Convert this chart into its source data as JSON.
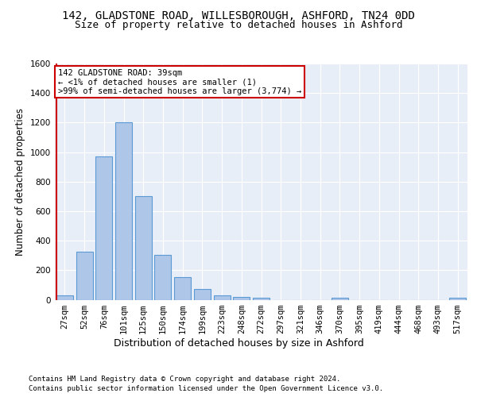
{
  "title_line1": "142, GLADSTONE ROAD, WILLESBOROUGH, ASHFORD, TN24 0DD",
  "title_line2": "Size of property relative to detached houses in Ashford",
  "xlabel": "Distribution of detached houses by size in Ashford",
  "ylabel": "Number of detached properties",
  "footnote1": "Contains HM Land Registry data © Crown copyright and database right 2024.",
  "footnote2": "Contains public sector information licensed under the Open Government Licence v3.0.",
  "bar_labels": [
    "27sqm",
    "52sqm",
    "76sqm",
    "101sqm",
    "125sqm",
    "150sqm",
    "174sqm",
    "199sqm",
    "223sqm",
    "248sqm",
    "272sqm",
    "297sqm",
    "321sqm",
    "346sqm",
    "370sqm",
    "395sqm",
    "419sqm",
    "444sqm",
    "468sqm",
    "493sqm",
    "517sqm"
  ],
  "bar_values": [
    28,
    325,
    970,
    1200,
    700,
    305,
    155,
    70,
    30,
    20,
    15,
    0,
    0,
    0,
    12,
    0,
    0,
    0,
    0,
    0,
    12
  ],
  "bar_color": "#aec6e8",
  "bar_edgecolor": "#5b9bd5",
  "highlight_color": "#cc0000",
  "annotation_text": "142 GLADSTONE ROAD: 39sqm\n← <1% of detached houses are smaller (1)\n>99% of semi-detached houses are larger (3,774) →",
  "annotation_box_color": "#ffffff",
  "annotation_box_edgecolor": "#cc0000",
  "ylim": [
    0,
    1600
  ],
  "yticks": [
    0,
    200,
    400,
    600,
    800,
    1000,
    1200,
    1400,
    1600
  ],
  "bg_color": "#e8eef7",
  "fig_bg_color": "#ffffff",
  "grid_color": "#ffffff",
  "title_fontsize": 10,
  "subtitle_fontsize": 9,
  "ylabel_fontsize": 8.5,
  "xlabel_fontsize": 9,
  "tick_fontsize": 7.5,
  "footnote_fontsize": 6.5
}
